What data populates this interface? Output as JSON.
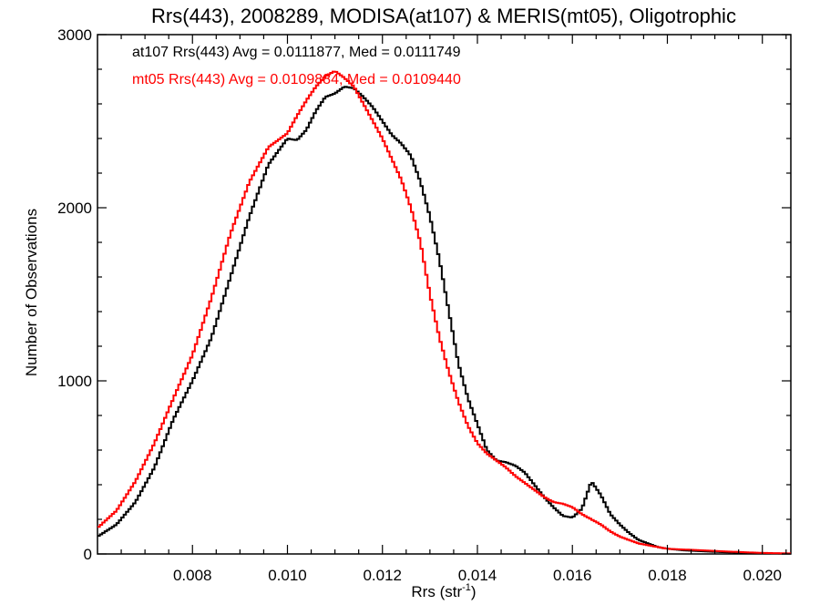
{
  "chart_data": {
    "type": "line",
    "title": "Rrs(443), 2008289, MODISA(at107) & MERIS(mt05), Oligotrophic",
    "xlabel": "Rrs (str",
    "xlabel_sup": "-1",
    "xlabel_end": ")",
    "ylabel": "Number of Observations",
    "xlim": [
      0.006,
      0.0206
    ],
    "ylim": [
      0,
      3000
    ],
    "xticks": [
      0.008,
      0.01,
      0.012,
      0.014,
      0.016,
      0.018,
      0.02
    ],
    "xtick_labels": [
      "0.008",
      "0.010",
      "0.012",
      "0.014",
      "0.016",
      "0.018",
      "0.020"
    ],
    "yticks": [
      0,
      1000,
      2000,
      3000
    ],
    "ytick_labels": [
      "0",
      "1000",
      "2000",
      "3000"
    ],
    "grid": false,
    "legend_position": "top-left",
    "series": [
      {
        "label": "at107 Rrs(443) Avg = 0.0111877, Med = 0.0111749",
        "color": "#000000",
        "x": [
          0.006,
          0.0064,
          0.0068,
          0.0072,
          0.0076,
          0.008,
          0.0084,
          0.0088,
          0.0092,
          0.0096,
          0.01,
          0.0102,
          0.0104,
          0.0106,
          0.0108,
          0.011,
          0.0112,
          0.0114,
          0.0116,
          0.0118,
          0.012,
          0.0122,
          0.0124,
          0.0126,
          0.0128,
          0.013,
          0.0132,
          0.0134,
          0.0136,
          0.0138,
          0.014,
          0.0142,
          0.0144,
          0.0146,
          0.0148,
          0.015,
          0.0152,
          0.0154,
          0.0156,
          0.0158,
          0.016,
          0.0162,
          0.0164,
          0.0166,
          0.0168,
          0.017,
          0.0172,
          0.0174,
          0.0176,
          0.0178,
          0.018,
          0.0184,
          0.0188,
          0.0192,
          0.0196,
          0.02,
          0.0204,
          0.0206
        ],
        "values": [
          100,
          170,
          300,
          500,
          780,
          1000,
          1250,
          1600,
          1950,
          2250,
          2400,
          2390,
          2450,
          2560,
          2640,
          2660,
          2700,
          2690,
          2640,
          2580,
          2500,
          2420,
          2370,
          2300,
          2150,
          1950,
          1700,
          1400,
          1100,
          900,
          750,
          600,
          540,
          530,
          510,
          470,
          400,
          330,
          270,
          220,
          210,
          260,
          420,
          340,
          230,
          170,
          120,
          80,
          60,
          40,
          30,
          20,
          15,
          10,
          6,
          4,
          2,
          2
        ]
      },
      {
        "label": "mt05 Rrs(443) Avg = 0.0109884, Med = 0.0109440",
        "color": "#ff0000",
        "x": [
          0.006,
          0.0064,
          0.0068,
          0.0072,
          0.0076,
          0.008,
          0.0084,
          0.0088,
          0.0092,
          0.0096,
          0.01,
          0.0102,
          0.0104,
          0.0106,
          0.0108,
          0.011,
          0.0112,
          0.0114,
          0.0116,
          0.0118,
          0.012,
          0.0122,
          0.0124,
          0.0126,
          0.0128,
          0.013,
          0.0132,
          0.0134,
          0.0136,
          0.0138,
          0.014,
          0.0142,
          0.0144,
          0.0146,
          0.0148,
          0.015,
          0.0152,
          0.0154,
          0.0156,
          0.0158,
          0.016,
          0.0162,
          0.0164,
          0.0166,
          0.0168,
          0.017,
          0.0172,
          0.0174,
          0.0176,
          0.0178,
          0.018,
          0.0184,
          0.0188,
          0.0192,
          0.0196,
          0.02,
          0.0204,
          0.0206
        ],
        "values": [
          150,
          250,
          420,
          640,
          900,
          1150,
          1480,
          1850,
          2150,
          2350,
          2430,
          2530,
          2620,
          2700,
          2760,
          2790,
          2750,
          2700,
          2600,
          2500,
          2400,
          2280,
          2160,
          2000,
          1800,
          1500,
          1250,
          1050,
          880,
          740,
          640,
          580,
          540,
          500,
          450,
          410,
          370,
          330,
          300,
          290,
          270,
          230,
          200,
          170,
          130,
          100,
          80,
          60,
          50,
          40,
          30,
          25,
          20,
          15,
          10,
          6,
          4,
          3
        ]
      }
    ]
  }
}
